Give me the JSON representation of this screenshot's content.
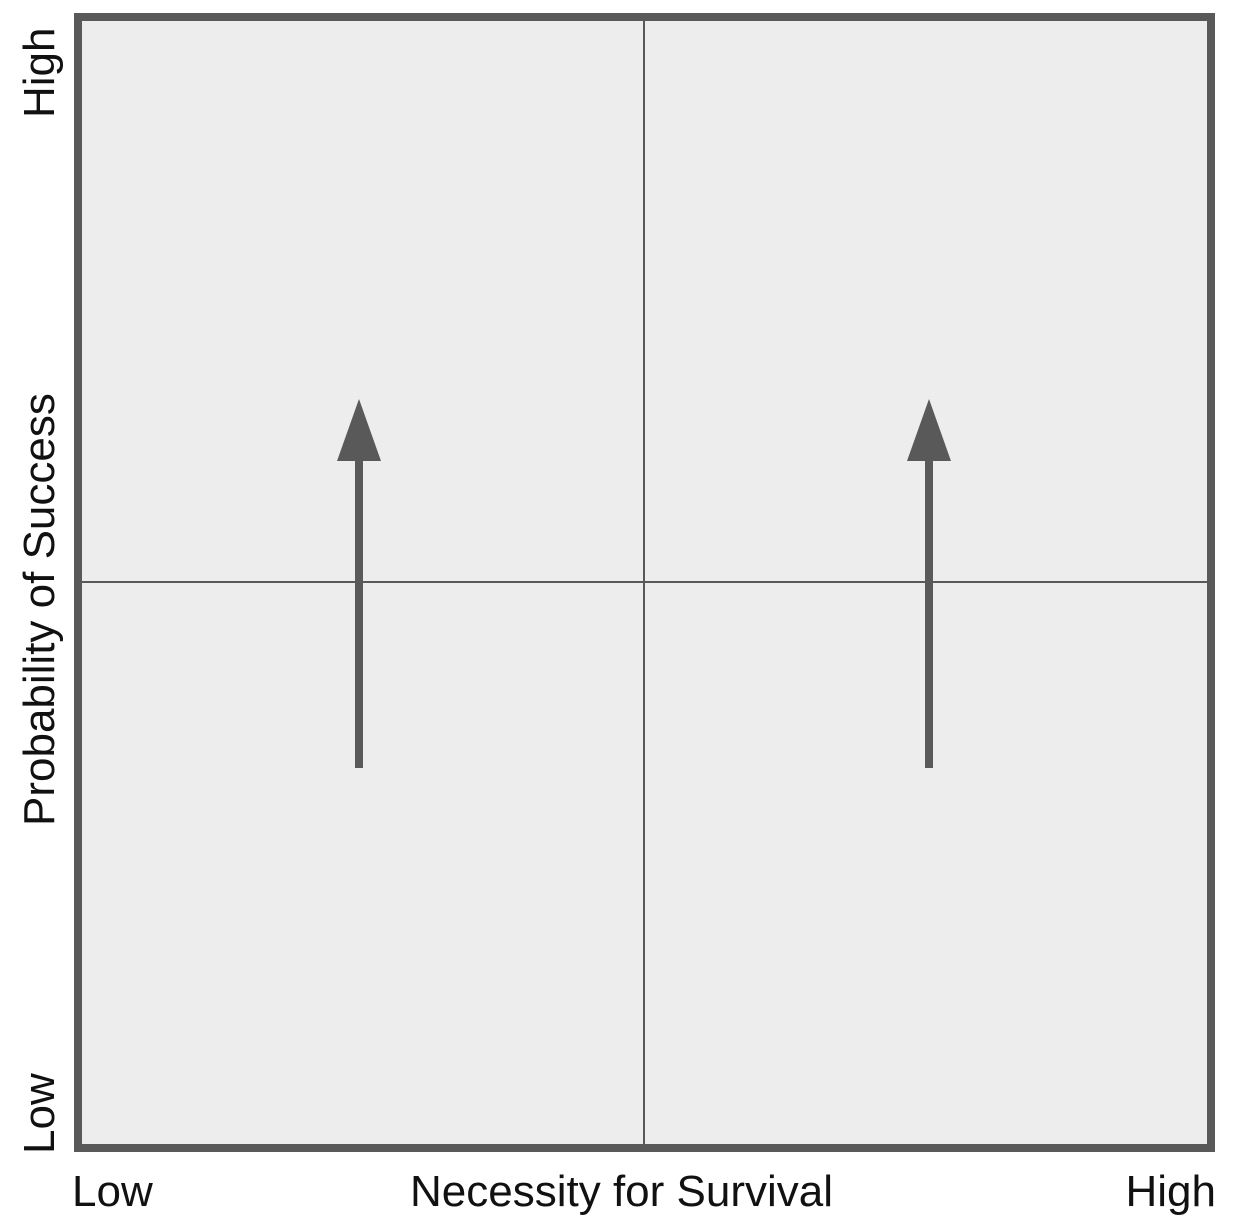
{
  "x_axis": {
    "title": "Necessity for Survival",
    "low_label": "Low",
    "high_label": "High"
  },
  "y_axis": {
    "title": "Probability of Success",
    "low_label": "Low",
    "high_label": "High"
  },
  "colors": {
    "quadrant_fill": "#ededed",
    "border": "#595959",
    "divider": "#595959",
    "arrow": "#595959",
    "text": "#111111"
  },
  "arrows": [
    {
      "name": "left-up-arrow",
      "direction": "up"
    },
    {
      "name": "right-up-arrow",
      "direction": "up"
    }
  ]
}
